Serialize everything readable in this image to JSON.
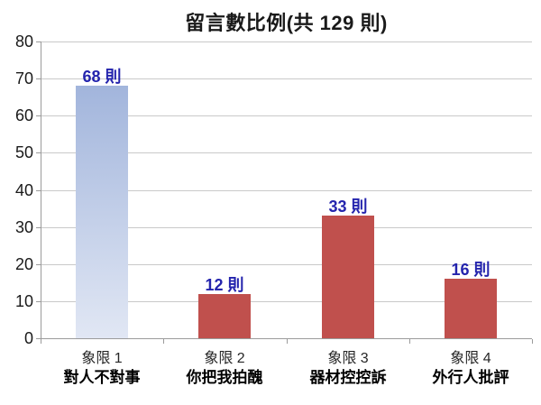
{
  "chart_data": {
    "type": "bar",
    "title": "留言數比例(共 129 則)",
    "total_label": "共 129 則",
    "total_value": 129,
    "categories": [
      "象限 1",
      "象限 2",
      "象限 3",
      "象限 4"
    ],
    "category_sublabels": [
      "對人不對事",
      "你把我拍醜",
      "器材控控訴",
      "外行人批評"
    ],
    "values": [
      68,
      12,
      33,
      16
    ],
    "value_labels": [
      "68 則",
      "12 則",
      "33 則",
      "16 則"
    ],
    "unit": "則",
    "ylim": [
      0,
      80
    ],
    "ytick_step": 10,
    "yticks": [
      0,
      10,
      20,
      30,
      40,
      50,
      60,
      70,
      80
    ],
    "grid": true,
    "legend": "none",
    "bar_fills": [
      "blue-gradient",
      "red",
      "red",
      "red"
    ],
    "colors": {
      "bar_blue_top": "#a2b5dc",
      "bar_blue_bottom": "#e1e7f4",
      "bar_red": "#c0504d",
      "value_label": "#2424ad",
      "axis": "#9b9b9b",
      "gridline": "#c9c9c9",
      "text": "#1a1a1a",
      "background": "#ffffff"
    }
  }
}
